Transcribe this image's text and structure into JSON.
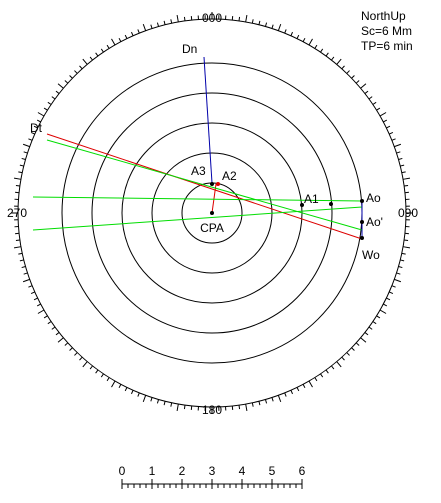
{
  "display": {
    "orientation": "NorthUp",
    "scale": "Sc=6 Mm",
    "time_period": "TP=6 min"
  },
  "bearings": {
    "north": "000",
    "east": "090",
    "south": "180",
    "west": "270"
  },
  "points": {
    "dn": "Dn",
    "dt": "Dt",
    "a3": "A3",
    "a2": "A2",
    "a1": "A1",
    "ao": "Ao",
    "ao_prime": "Ao'",
    "wo": "Wo",
    "cpa": "CPA"
  },
  "scale_bar": {
    "ticks": [
      "0",
      "1",
      "2",
      "3",
      "4",
      "5",
      "6"
    ]
  },
  "colors": {
    "range_rings": "#000000",
    "relative_motion_lines": "#00dd00",
    "target_course_line": "#dd0000",
    "own_ship_heading_line": "#0000aa",
    "background": "#ffffff"
  }
}
